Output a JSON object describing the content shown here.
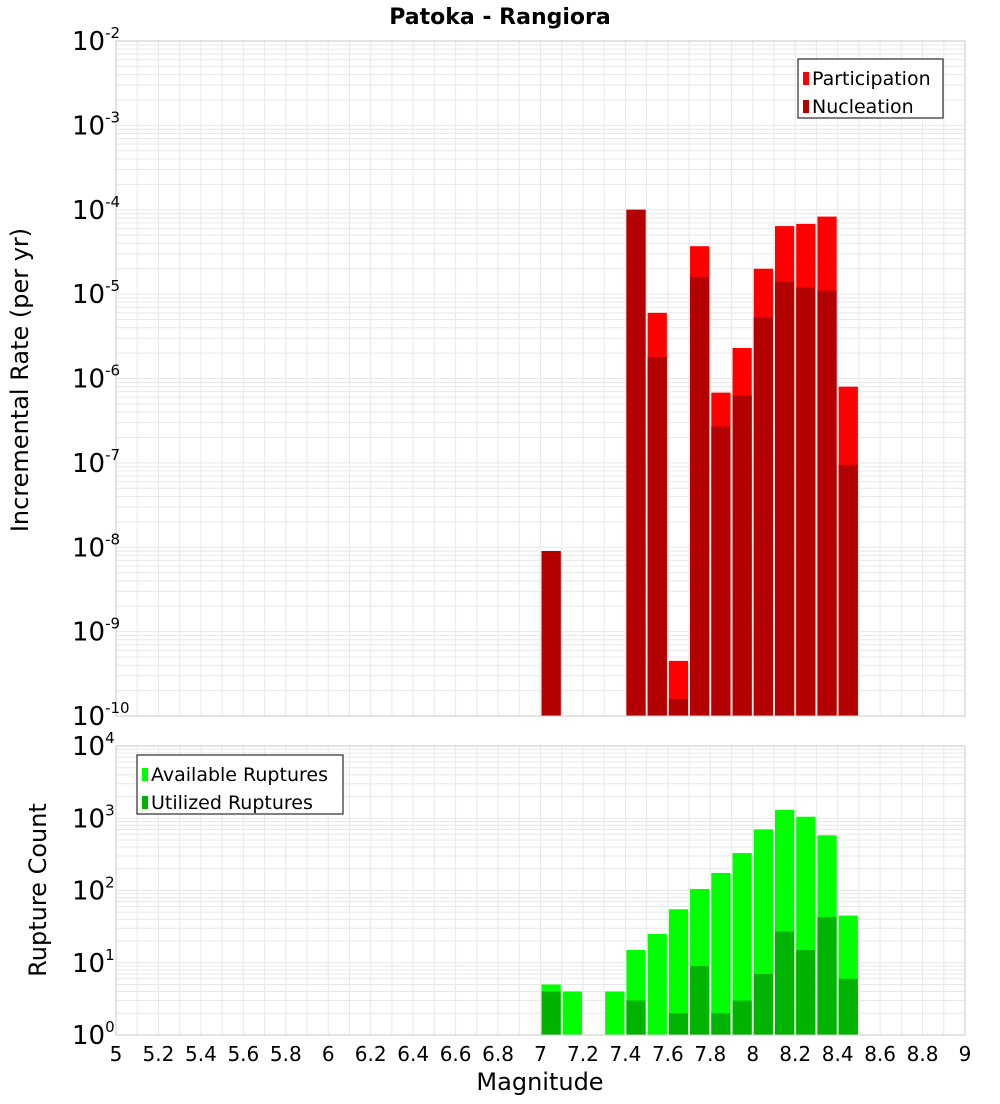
{
  "title": "Patoka - Rangiora",
  "colors": {
    "participation": "#ff0000",
    "nucleation": "#b30000",
    "available": "#00ff00",
    "utilized": "#00b300",
    "grid": "#e8e8e8",
    "frame": "#c8c8c8"
  },
  "chart_data": [
    {
      "type": "bar",
      "panel": "top",
      "ylabel": "Incremental Rate (per yr)",
      "yscale": "log",
      "ylim": [
        1e-10,
        0.01
      ],
      "xlim": [
        5,
        9
      ],
      "grid": true,
      "legend_position": "top-right",
      "x": [
        7.05,
        7.45,
        7.55,
        7.65,
        7.75,
        7.85,
        7.95,
        8.05,
        8.15,
        8.25,
        8.35,
        8.45
      ],
      "series": [
        {
          "name": "Participation",
          "color": "#ff0000",
          "values": [
            9e-09,
            0.0001,
            6e-06,
            4.5e-10,
            3.7e-05,
            6.8e-07,
            2.3e-06,
            2e-05,
            6.4e-05,
            6.8e-05,
            8.3e-05,
            8e-07
          ]
        },
        {
          "name": "Nucleation",
          "color": "#b30000",
          "values": [
            9e-09,
            0.0001,
            1.8e-06,
            1.6e-10,
            1.6e-05,
            2.7e-07,
            6.3e-07,
            5.3e-06,
            1.4e-05,
            1.2e-05,
            1.1e-05,
            9.5e-08
          ]
        }
      ]
    },
    {
      "type": "bar",
      "panel": "bottom",
      "xlabel": "Magnitude",
      "ylabel": "Rupture Count",
      "yscale": "log",
      "ylim": [
        1,
        10000
      ],
      "xlim": [
        5,
        9
      ],
      "grid": true,
      "legend_position": "top-left",
      "x": [
        7.05,
        7.15,
        7.35,
        7.45,
        7.55,
        7.65,
        7.75,
        7.85,
        7.95,
        8.05,
        8.15,
        8.25,
        8.35,
        8.45
      ],
      "series": [
        {
          "name": "Available Ruptures",
          "color": "#00ff00",
          "values": [
            5,
            4,
            4,
            15,
            25,
            55,
            105,
            175,
            330,
            700,
            1300,
            1050,
            580,
            45
          ]
        },
        {
          "name": "Utilized Ruptures",
          "color": "#00b300",
          "values": [
            4,
            0,
            0,
            3,
            1,
            2,
            9,
            2,
            3,
            7,
            27,
            15,
            43,
            6
          ]
        }
      ]
    }
  ],
  "x_ticks": [
    "5",
    "5.2",
    "5.4",
    "5.6",
    "5.8",
    "6",
    "6.2",
    "6.4",
    "6.6",
    "6.8",
    "7",
    "7.2",
    "7.4",
    "7.6",
    "7.8",
    "8",
    "8.2",
    "8.4",
    "8.6",
    "8.8",
    "9"
  ],
  "top_y_ticks": [
    {
      "base": "10",
      "exp": "-10"
    },
    {
      "base": "10",
      "exp": "-9"
    },
    {
      "base": "10",
      "exp": "-8"
    },
    {
      "base": "10",
      "exp": "-7"
    },
    {
      "base": "10",
      "exp": "-6"
    },
    {
      "base": "10",
      "exp": "-5"
    },
    {
      "base": "10",
      "exp": "-4"
    },
    {
      "base": "10",
      "exp": "-3"
    },
    {
      "base": "10",
      "exp": "-2"
    }
  ],
  "bottom_y_ticks": [
    {
      "base": "10",
      "exp": "0"
    },
    {
      "base": "10",
      "exp": "1"
    },
    {
      "base": "10",
      "exp": "2"
    },
    {
      "base": "10",
      "exp": "3"
    },
    {
      "base": "10",
      "exp": "4"
    }
  ]
}
